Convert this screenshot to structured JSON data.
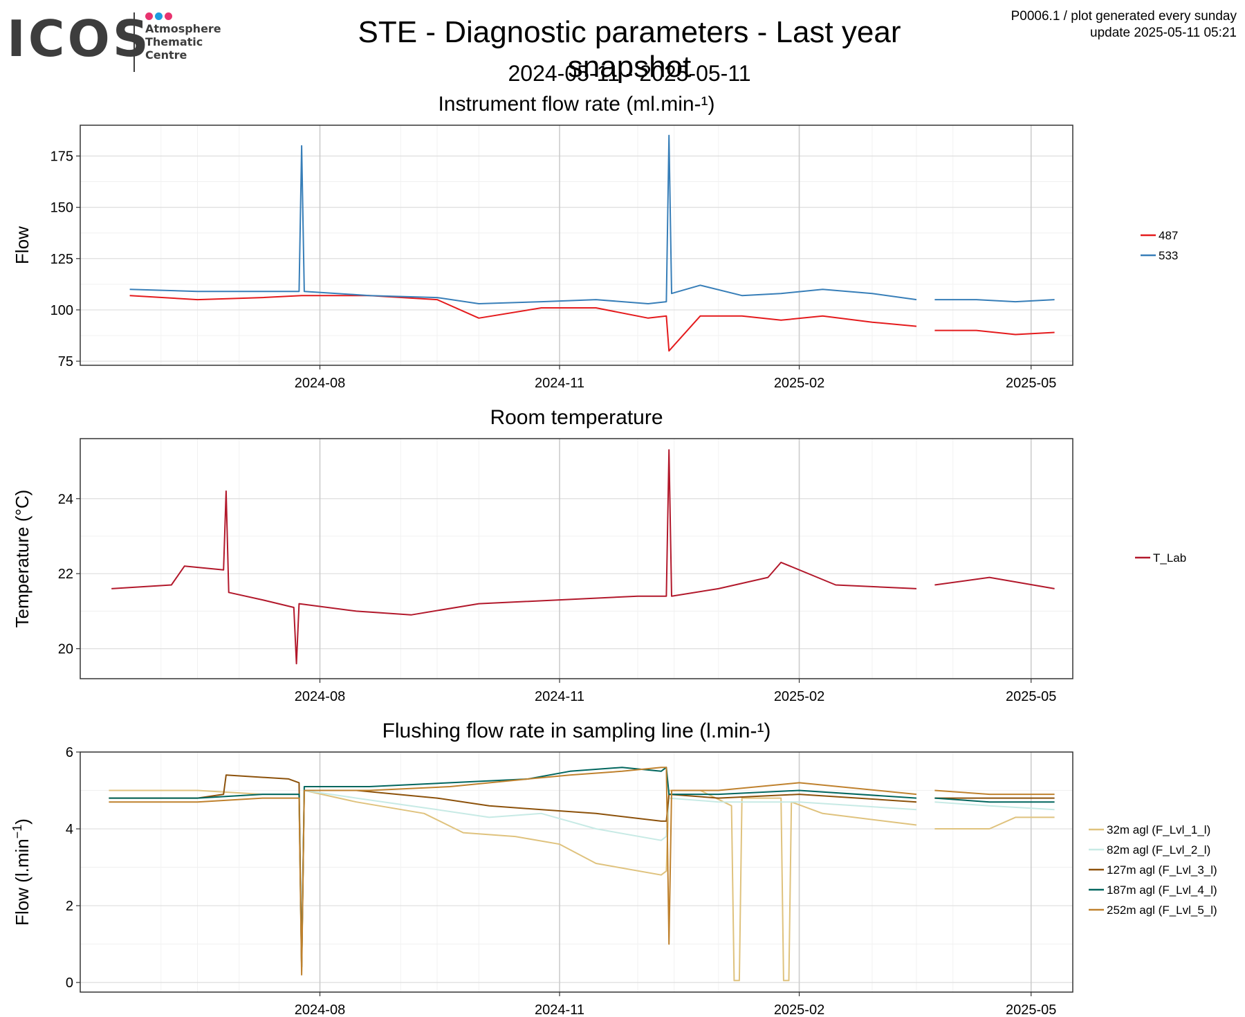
{
  "header": {
    "logo_text": "ICOS",
    "logo_sub": [
      "Atmosphere",
      "Thematic",
      "Centre"
    ],
    "title": "STE - Diagnostic parameters - Last year snapshot",
    "subtitle": "2024-05-11 - 2025-05-11",
    "meta_line1": "P0006.1 / plot generated every sunday",
    "meta_line2": "update  2025-05-11 05:21"
  },
  "colors": {
    "logo_dots": [
      "#e8336f",
      "#1e9ce0",
      "#e8336f"
    ],
    "s487": "#e41a1c",
    "s533": "#377eb8",
    "tlab": "#b2182b",
    "lvl1": "#dfc27d",
    "lvl2": "#c7eae5",
    "lvl3": "#8c510a",
    "lvl4": "#01665e",
    "lvl5": "#bf812d"
  },
  "chart_data": [
    {
      "type": "line",
      "title": "Instrument flow rate (ml.min-¹)",
      "xlabel": "",
      "ylabel": "Flow",
      "x_ticks": [
        "2024-08",
        "2024-11",
        "2025-02",
        "2025-05"
      ],
      "y_ticks": [
        75,
        100,
        125,
        150,
        175
      ],
      "ylim": [
        73,
        190
      ],
      "legend_position": "right",
      "series": [
        {
          "name": "487",
          "color_key": "s487",
          "x": [
            "2024-05-20",
            "2024-06-15",
            "2024-07-10",
            "2024-07-25",
            "2024-08-20",
            "2024-09-15",
            "2024-10-01",
            "2024-10-25",
            "2024-11-15",
            "2024-12-05",
            "2024-12-12",
            "2024-12-13",
            "2024-12-25",
            "2025-01-10",
            "2025-01-25",
            "2025-02-10",
            "2025-03-01",
            "2025-03-18",
            "2025-03-25",
            "2025-04-10",
            "2025-04-25",
            "2025-05-10"
          ],
          "y": [
            107,
            105,
            106,
            107,
            107,
            105,
            96,
            101,
            101,
            96,
            97,
            80,
            97,
            97,
            95,
            97,
            94,
            92,
            90,
            90,
            88,
            89
          ]
        },
        {
          "name": "533",
          "color_key": "s533",
          "x": [
            "2024-05-20",
            "2024-06-15",
            "2024-07-10",
            "2024-07-24",
            "2024-07-25",
            "2024-07-26",
            "2024-08-20",
            "2024-09-15",
            "2024-10-01",
            "2024-10-25",
            "2024-11-15",
            "2024-12-05",
            "2024-12-12",
            "2024-12-13",
            "2024-12-14",
            "2024-12-25",
            "2025-01-10",
            "2025-01-25",
            "2025-02-10",
            "2025-03-01",
            "2025-03-18",
            "2025-03-25",
            "2025-04-10",
            "2025-04-25",
            "2025-05-10"
          ],
          "y": [
            110,
            109,
            109,
            109,
            180,
            109,
            107,
            106,
            103,
            104,
            105,
            103,
            104,
            185,
            108,
            112,
            107,
            108,
            110,
            108,
            105,
            105,
            105,
            104,
            105
          ]
        }
      ]
    },
    {
      "type": "line",
      "title": "Room temperature",
      "xlabel": "",
      "ylabel": "Temperature (°C)",
      "x_ticks": [
        "2024-08",
        "2024-11",
        "2025-02",
        "2025-05"
      ],
      "y_ticks": [
        20,
        22,
        24
      ],
      "ylim": [
        19.2,
        25.6
      ],
      "legend_position": "right",
      "series": [
        {
          "name": "T_Lab",
          "color_key": "tlab",
          "x": [
            "2024-05-13",
            "2024-06-05",
            "2024-06-10",
            "2024-06-25",
            "2024-06-26",
            "2024-06-27",
            "2024-07-10",
            "2024-07-22",
            "2024-07-23",
            "2024-07-24",
            "2024-08-15",
            "2024-09-05",
            "2024-10-01",
            "2024-11-01",
            "2024-12-01",
            "2024-12-12",
            "2024-12-13",
            "2024-12-14",
            "2025-01-01",
            "2025-01-20",
            "2025-01-25",
            "2025-02-15",
            "2025-03-18",
            "2025-03-25",
            "2025-04-15",
            "2025-05-10"
          ],
          "y": [
            21.6,
            21.7,
            22.2,
            22.1,
            24.2,
            21.5,
            21.3,
            21.1,
            19.6,
            21.2,
            21.0,
            20.9,
            21.2,
            21.3,
            21.4,
            21.4,
            25.3,
            21.4,
            21.6,
            21.9,
            22.3,
            21.7,
            21.6,
            21.7,
            21.9,
            21.6
          ]
        }
      ]
    },
    {
      "type": "line",
      "title": "Flushing flow rate in sampling line (l.min-¹)",
      "xlabel": "",
      "ylabel": "Flow (l.min",
      "ylabel_sup": "−1",
      "ylabel_close": ")",
      "x_ticks": [
        "2024-08",
        "2024-11",
        "2025-02",
        "2025-05"
      ],
      "y_ticks": [
        0,
        2,
        4,
        6
      ],
      "ylim": [
        -0.25,
        6.0
      ],
      "legend_position": "right",
      "series": [
        {
          "name": "32m agl (F_Lvl_1_l)",
          "color_key": "lvl1",
          "x": [
            "2024-05-12",
            "2024-06-15",
            "2024-07-10",
            "2024-07-24",
            "2024-07-25",
            "2024-07-26",
            "2024-08-15",
            "2024-09-10",
            "2024-09-25",
            "2024-10-15",
            "2024-11-01",
            "2024-11-15",
            "2024-12-10",
            "2024-12-12",
            "2024-12-13",
            "2024-12-25",
            "2025-01-06",
            "2025-01-07",
            "2025-01-09",
            "2025-01-10",
            "2025-01-25",
            "2025-01-26",
            "2025-01-28",
            "2025-01-29",
            "2025-02-10",
            "2025-03-18",
            "2025-03-25",
            "2025-04-15",
            "2025-04-25",
            "2025-05-10"
          ],
          "y": [
            5.0,
            5.0,
            4.9,
            4.9,
            0.3,
            5.0,
            4.7,
            4.4,
            3.9,
            3.8,
            3.6,
            3.1,
            2.8,
            2.9,
            5.0,
            5.0,
            4.6,
            0.05,
            0.05,
            4.8,
            4.8,
            0.05,
            0.05,
            4.7,
            4.4,
            4.1,
            4.0,
            4.0,
            4.3,
            4.3
          ]
        },
        {
          "name": "82m agl (F_Lvl_2_l)",
          "color_key": "lvl2",
          "x": [
            "2024-05-12",
            "2024-06-15",
            "2024-07-10",
            "2024-07-24",
            "2024-07-25",
            "2024-07-26",
            "2024-08-15",
            "2024-09-15",
            "2024-10-05",
            "2024-10-25",
            "2024-11-15",
            "2024-12-10",
            "2024-12-12",
            "2024-12-13",
            "2025-01-01",
            "2025-02-01",
            "2025-03-18",
            "2025-03-25",
            "2025-04-15",
            "2025-05-10"
          ],
          "y": [
            4.8,
            4.8,
            4.9,
            4.9,
            0.5,
            5.0,
            4.8,
            4.5,
            4.3,
            4.4,
            4.0,
            3.7,
            3.8,
            4.8,
            4.7,
            4.7,
            4.5,
            4.7,
            4.6,
            4.5
          ]
        },
        {
          "name": "127m agl (F_Lvl_3_l)",
          "color_key": "lvl3",
          "x": [
            "2024-05-12",
            "2024-06-15",
            "2024-06-25",
            "2024-06-26",
            "2024-07-20",
            "2024-07-24",
            "2024-07-25",
            "2024-07-26",
            "2024-08-15",
            "2024-09-15",
            "2024-10-05",
            "2024-10-25",
            "2024-11-15",
            "2024-12-10",
            "2024-12-12",
            "2024-12-13",
            "2025-01-01",
            "2025-02-01",
            "2025-03-18",
            "2025-03-25",
            "2025-04-15",
            "2025-05-10"
          ],
          "y": [
            4.8,
            4.8,
            4.9,
            5.4,
            5.3,
            5.2,
            0.4,
            5.0,
            5.0,
            4.8,
            4.6,
            4.5,
            4.4,
            4.2,
            4.2,
            4.9,
            4.8,
            4.9,
            4.7,
            4.8,
            4.8,
            4.8
          ]
        },
        {
          "name": "187m agl (F_Lvl_4_l)",
          "color_key": "lvl4",
          "x": [
            "2024-05-12",
            "2024-06-15",
            "2024-07-10",
            "2024-07-24",
            "2024-07-25",
            "2024-07-26",
            "2024-08-20",
            "2024-09-20",
            "2024-10-20",
            "2024-11-05",
            "2024-11-25",
            "2024-12-10",
            "2024-12-12",
            "2024-12-13",
            "2025-01-01",
            "2025-02-01",
            "2025-03-18",
            "2025-03-25",
            "2025-04-15",
            "2025-05-10"
          ],
          "y": [
            4.8,
            4.8,
            4.9,
            4.9,
            0.4,
            5.1,
            5.1,
            5.2,
            5.3,
            5.5,
            5.6,
            5.5,
            5.6,
            4.9,
            4.9,
            5.0,
            4.8,
            4.8,
            4.7,
            4.7
          ]
        },
        {
          "name": "252m agl (F_Lvl_5_l)",
          "color_key": "lvl5",
          "x": [
            "2024-05-12",
            "2024-06-15",
            "2024-07-10",
            "2024-07-24",
            "2024-07-25",
            "2024-07-26",
            "2024-08-20",
            "2024-09-20",
            "2024-10-20",
            "2024-11-05",
            "2024-11-25",
            "2024-12-10",
            "2024-12-12",
            "2024-12-13",
            "2024-12-14",
            "2025-01-01",
            "2025-02-01",
            "2025-03-18",
            "2025-03-25",
            "2025-04-15",
            "2025-05-10"
          ],
          "y": [
            4.7,
            4.7,
            4.8,
            4.8,
            0.2,
            5.0,
            5.0,
            5.1,
            5.3,
            5.4,
            5.5,
            5.6,
            5.6,
            1.0,
            5.0,
            5.0,
            5.2,
            4.9,
            5.0,
            4.9,
            4.9
          ]
        }
      ]
    }
  ]
}
